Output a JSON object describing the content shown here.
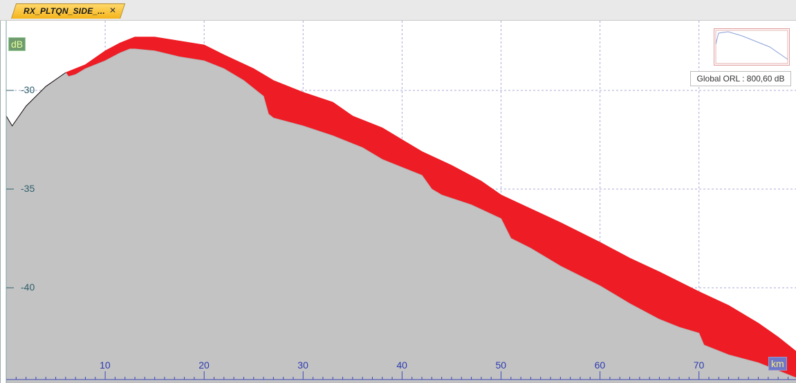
{
  "tab": {
    "title": "RX_PLTQN_SIDE_...",
    "close_glyph": "✕"
  },
  "chart_data": {
    "type": "area",
    "xlabel": "km",
    "ylabel": "dB",
    "xlim": [
      0,
      80
    ],
    "ylim": [
      -44.6,
      -26.0
    ],
    "x_ticks": [
      10,
      20,
      30,
      40,
      50,
      60,
      70
    ],
    "y_ticks": [
      -30,
      -35,
      -40
    ],
    "x_tick_labels": [
      "10",
      "20",
      "30",
      "40",
      "50",
      "60",
      "70"
    ],
    "y_tick_labels": [
      "-30",
      "-35",
      "-40"
    ],
    "series": [
      {
        "role": "upper",
        "color": "#ee1c24",
        "x": [
          0,
          0.6,
          2,
          4,
          6,
          8,
          10,
          11.5,
          12.5,
          13,
          15,
          17.5,
          20,
          22,
          25,
          27,
          30,
          33,
          35,
          38,
          40,
          42,
          45,
          48,
          50,
          53,
          56,
          60,
          63,
          66,
          70,
          73,
          76,
          78,
          80
        ],
        "y": [
          -31.3,
          -31.8,
          -30.8,
          -29.8,
          -29.1,
          -28.7,
          -28.0,
          -27.6,
          -27.4,
          -27.3,
          -27.3,
          -27.5,
          -27.7,
          -28.2,
          -28.9,
          -29.5,
          -30.1,
          -30.6,
          -31.3,
          -31.9,
          -32.5,
          -33.1,
          -33.8,
          -34.6,
          -35.3,
          -36.0,
          -36.7,
          -37.7,
          -38.5,
          -39.2,
          -40.2,
          -40.9,
          -41.8,
          -42.5,
          -43.3
        ]
      },
      {
        "role": "lower",
        "color": "#c3c3c3",
        "x": [
          0,
          0.6,
          2,
          4,
          6,
          6.3,
          7,
          8,
          9,
          10,
          11.5,
          12.5,
          13,
          15,
          17.5,
          20,
          22,
          24,
          26,
          26.5,
          27,
          30,
          33,
          36,
          38,
          40,
          42,
          43,
          44,
          47,
          50,
          51,
          53,
          56,
          60,
          63,
          66,
          68,
          70,
          70.5,
          73,
          76,
          78,
          80
        ],
        "y": [
          -31.3,
          -31.8,
          -30.8,
          -29.8,
          -29.1,
          -29.3,
          -29.2,
          -28.9,
          -28.7,
          -28.5,
          -28.1,
          -27.9,
          -27.9,
          -28.0,
          -28.3,
          -28.5,
          -28.9,
          -29.5,
          -30.3,
          -31.2,
          -31.4,
          -31.8,
          -32.3,
          -32.9,
          -33.5,
          -33.9,
          -34.3,
          -35.0,
          -35.3,
          -35.8,
          -36.5,
          -37.5,
          -38.0,
          -38.9,
          -39.9,
          -40.8,
          -41.6,
          -42.0,
          -42.3,
          -42.9,
          -43.4,
          -43.8,
          -44.2,
          -44.6
        ]
      }
    ],
    "grid": true
  },
  "overview": {
    "legend": "Global ORL : 800,60 dB"
  },
  "colors": {
    "upper_fill": "#ee1c24",
    "lower_fill": "#c3c3c3",
    "grid": "#a9a9d8",
    "y_axis_text": "#2d5f6a",
    "x_axis_text": "#2b3bb0"
  }
}
